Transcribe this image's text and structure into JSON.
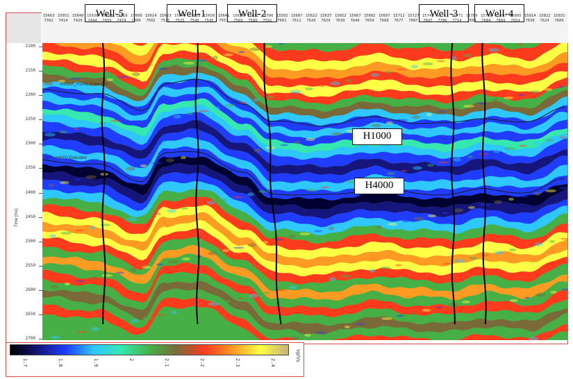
{
  "wells": [
    {
      "name": "Well-5"
    },
    {
      "name": "Well-1"
    },
    {
      "name": "Well-2"
    },
    {
      "name": "Well-3"
    },
    {
      "name": "Well-4"
    }
  ],
  "horizons": [
    {
      "name": "H1000"
    },
    {
      "name": "H4000"
    }
  ],
  "faint_labels": [
    "Horizon_H1000 Extended",
    "Hrzn_H4000 Extended"
  ],
  "time_axis": {
    "label": "Time (ms)",
    "ticks": [
      "2100",
      "2150",
      "2200",
      "2250",
      "2300",
      "2350",
      "2400",
      "2450",
      "2500",
      "2550",
      "2600",
      "2650",
      "2700"
    ]
  },
  "trace_header": {
    "inlines": [
      "15663",
      "15651",
      "15640",
      "15638",
      "15628",
      "15618",
      "15609",
      "15614",
      "15623",
      "15644",
      "15658",
      "15656",
      "15641",
      "15626",
      "15611",
      "15596",
      "15592",
      "15607",
      "15622",
      "15637",
      "15652",
      "15667",
      "15682",
      "15697",
      "15712",
      "15727",
      "15742",
      "15757",
      "15771",
      "15780",
      "15788",
      "15797",
      "15805",
      "15814",
      "15822",
      "15831"
    ],
    "xlines": [
      "7392",
      "7414",
      "7429",
      "7444",
      "7459",
      "7474",
      "7489",
      "7502",
      "7515",
      "7525",
      "7540",
      "7545",
      "7557",
      "7569",
      "7580",
      "7591",
      "7601",
      "7611",
      "7620",
      "7629",
      "7639",
      "7649",
      "7659",
      "7668",
      "7677",
      "7687",
      "7697",
      "7706",
      "7714",
      "7699",
      "7684",
      "7669",
      "7654",
      "7639",
      "7624",
      "7609"
    ]
  },
  "colorbar": {
    "ticks": [
      "1.7",
      "1.8",
      "1.9",
      "2",
      "2.1",
      "2.2",
      "2.3",
      "2.4"
    ],
    "unit": "Vp/Vs",
    "colors": [
      "#000000",
      "#16157c",
      "#1f3cff",
      "#2ec7ff",
      "#36e8b0",
      "#46b046",
      "#7a6a3a",
      "#ff3b1e",
      "#ff9a22",
      "#ffff45",
      "#c8b07a"
    ]
  }
}
